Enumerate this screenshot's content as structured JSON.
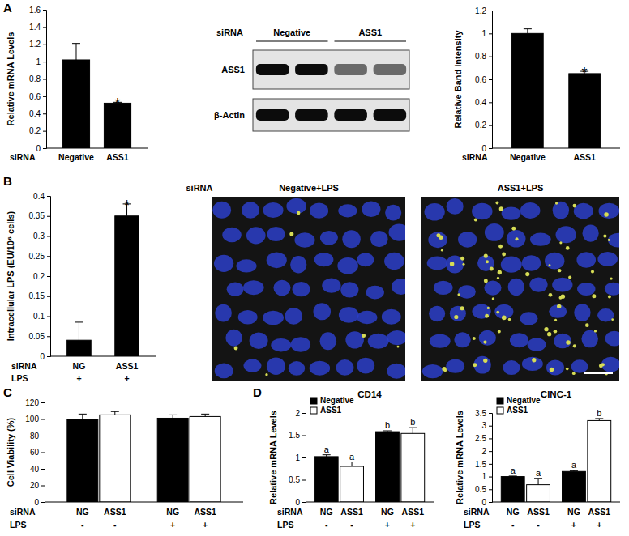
{
  "panel_labels": [
    "A",
    "B",
    "C",
    "D"
  ],
  "chart_data": [
    {
      "type": "bar",
      "y_label": "Relative mRNA Levels",
      "x_rows": [
        {
          "label": "siRNA",
          "values": [
            "Negative",
            "ASS1"
          ]
        }
      ],
      "series": [
        {
          "color": "#000000",
          "values": [
            1.02,
            0.52
          ],
          "errors": [
            0.19,
            0.01
          ],
          "significance": [
            null,
            "*"
          ]
        }
      ],
      "ylim": [
        0,
        1.6
      ],
      "yticks": [
        0,
        0.2,
        0.4,
        0.6,
        0.8,
        1,
        1.2,
        1.4,
        1.6
      ]
    },
    {
      "type": "bar",
      "y_label": "Relative Band Intensity",
      "x_rows": [
        {
          "label": "siRNA",
          "values": [
            "Negative",
            "ASS1"
          ]
        }
      ],
      "series": [
        {
          "color": "#000000",
          "values": [
            1.0,
            0.65
          ],
          "errors": [
            0.04,
            0.02
          ],
          "significance": [
            null,
            "*"
          ]
        }
      ],
      "ylim": [
        0,
        1.2
      ],
      "yticks": [
        0,
        0.2,
        0.4,
        0.6,
        0.8,
        1,
        1.2
      ]
    },
    {
      "type": "bar",
      "y_label": "Intracellular LPS (EU/10⁶ cells)",
      "x_rows": [
        {
          "label": "siRNA",
          "values": [
            "NG",
            "ASS1"
          ]
        },
        {
          "label": "LPS",
          "values": [
            "+",
            "+"
          ]
        }
      ],
      "series": [
        {
          "color": "#000000",
          "values": [
            0.04,
            0.35
          ],
          "errors": [
            0.045,
            0.03
          ],
          "significance": [
            null,
            "*"
          ]
        }
      ],
      "ylim": [
        0,
        0.4
      ],
      "yticks": [
        0,
        0.05,
        0.1,
        0.15,
        0.2,
        0.25,
        0.3,
        0.35,
        0.4
      ]
    },
    {
      "type": "bar",
      "y_label": "Cell Viability (%)",
      "x_rows": [
        {
          "label": "siRNA",
          "values": [
            "NG",
            "ASS1",
            "NG",
            "ASS1"
          ]
        },
        {
          "label": "LPS",
          "values": [
            "-",
            "-",
            "+",
            "+"
          ]
        }
      ],
      "series": [
        {
          "color": "#000000",
          "values": [
            100,
            101
          ],
          "errors": [
            6,
            4
          ]
        },
        {
          "color": "#ffffff",
          "values": [
            105,
            103
          ],
          "errors": [
            4,
            3
          ]
        }
      ],
      "ylim": [
        0,
        120
      ],
      "yticks": [
        0,
        20,
        40,
        60,
        80,
        100,
        120
      ]
    },
    {
      "type": "bar",
      "title": "CD14",
      "y_label": "Relative mRNA Levels",
      "legend": "top-left",
      "x_rows": [
        {
          "label": "siRNA",
          "values": [
            "NG",
            "ASS1",
            "NG",
            "ASS1"
          ]
        },
        {
          "label": "LPS",
          "values": [
            "-",
            "-",
            "+",
            "+"
          ]
        }
      ],
      "series": [
        {
          "name": "Negative",
          "color": "#000000",
          "values": [
            1.02,
            1.58
          ],
          "errors": [
            0.04,
            0.02
          ],
          "significance": [
            "a",
            "b"
          ]
        },
        {
          "name": "ASS1",
          "color": "#ffffff",
          "values": [
            0.8,
            1.54
          ],
          "errors": [
            0.1,
            0.13
          ],
          "significance": [
            "a",
            "b"
          ]
        }
      ],
      "ylim": [
        0,
        2
      ],
      "yticks": [
        0,
        0.5,
        1,
        1.5,
        2
      ]
    },
    {
      "type": "bar",
      "title": "CINC-1",
      "y_label": "Relative mRNA Levels",
      "legend": "top-left",
      "x_rows": [
        {
          "label": "siRNA",
          "values": [
            "NG",
            "ASS1",
            "NG",
            "ASS1"
          ]
        },
        {
          "label": "LPS",
          "values": [
            "-",
            "-",
            "+",
            "+"
          ]
        }
      ],
      "series": [
        {
          "name": "Negative",
          "color": "#000000",
          "values": [
            1.0,
            1.2
          ],
          "errors": [
            0.02,
            0.03
          ],
          "significance": [
            "a",
            "a"
          ]
        },
        {
          "name": "ASS1",
          "color": "#ffffff",
          "values": [
            0.68,
            3.2
          ],
          "errors": [
            0.25,
            0.08
          ],
          "significance": [
            "a",
            "b"
          ]
        }
      ],
      "ylim": [
        0,
        3.5
      ],
      "yticks": [
        0,
        0.5,
        1,
        1.5,
        2,
        2.5,
        3,
        3.5
      ]
    }
  ],
  "blot": {
    "header_label": "siRNA",
    "groups": [
      {
        "label": "Negative",
        "lanes": 2
      },
      {
        "label": "ASS1",
        "lanes": 2
      }
    ],
    "rows": [
      {
        "label": "ASS1",
        "intensity": [
          1,
          1,
          0.55,
          0.55
        ]
      },
      {
        "label": "β-Actin",
        "intensity": [
          1,
          1,
          1,
          1
        ]
      }
    ]
  },
  "micrographs": {
    "row_label": "siRNA",
    "images": [
      {
        "label": "Negative+LPS",
        "puncta_count": 6
      },
      {
        "label": "ASS1+LPS",
        "puncta_count": 70
      }
    ]
  }
}
